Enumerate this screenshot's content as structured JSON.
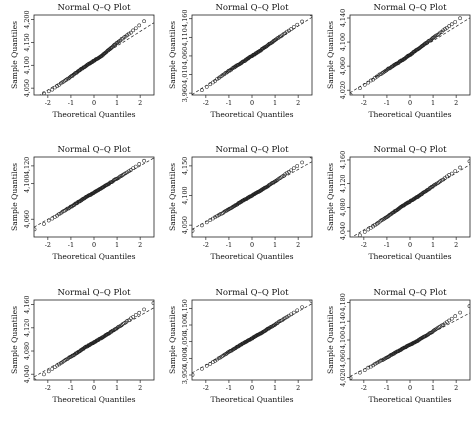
{
  "chart_data": [
    {
      "type": "scatter",
      "title": "Normal Q–Q Plot",
      "xlabel": "Theoretical Quantiles",
      "ylabel": "Sample Quantiles",
      "xlim": [
        -2.6,
        2.6
      ],
      "ylim": [
        4035,
        4210
      ],
      "x_ticks": [
        -2,
        -1,
        0,
        1,
        2
      ],
      "y_ticks": [
        4050,
        4100,
        4150,
        4200
      ],
      "y_tick_labels": [
        "4,050",
        "4,100",
        "4,150",
        "4,200"
      ],
      "line": {
        "intercept": 4110,
        "slope": 32
      },
      "shape": [
        0,
        -5,
        -3,
        0,
        0,
        8,
        12,
        20
      ]
    },
    {
      "type": "scatter",
      "title": "Normal Q–Q Plot",
      "xlabel": "Theoretical Quantiles",
      "ylabel": "Sample Quantiles",
      "xlim": [
        -2.6,
        2.6
      ],
      "ylim": [
        3955,
        4170
      ],
      "x_ticks": [
        -2,
        -1,
        0,
        1,
        2
      ],
      "y_ticks": [
        3960,
        4010,
        4060,
        4110,
        4160
      ],
      "y_tick_labels": [
        "3,960",
        "4,010",
        "4,060",
        "4,110",
        "4,160"
      ],
      "line": {
        "intercept": 4060,
        "slope": 40
      },
      "shape": [
        -6,
        -3,
        0,
        0,
        0,
        3,
        5,
        8
      ]
    },
    {
      "type": "scatter",
      "title": "Normal Q–Q Plot",
      "xlabel": "Theoretical Quantiles",
      "ylabel": "Sample Quantiles",
      "xlim": [
        -2.6,
        2.6
      ],
      "ylim": [
        4012,
        4145
      ],
      "x_ticks": [
        -2,
        -1,
        0,
        1,
        2
      ],
      "y_ticks": [
        4020,
        4060,
        4100,
        4140
      ],
      "y_tick_labels": [
        "4,020",
        "4,060",
        "4,100",
        "4,140"
      ],
      "line": {
        "intercept": 4078,
        "slope": 24
      },
      "shape": [
        -4,
        -2,
        0,
        0,
        2,
        5,
        8,
        10
      ]
    },
    {
      "type": "scatter",
      "title": "Normal Q–Q Plot",
      "xlabel": "Theoretical Quantiles",
      "ylabel": "Sample Quantiles",
      "xlim": [
        -2.6,
        2.6
      ],
      "ylim": [
        4040,
        4130
      ],
      "x_ticks": [
        -2,
        -1,
        0,
        1,
        2
      ],
      "y_ticks": [
        4060,
        4100,
        4120
      ],
      "y_tick_labels": [
        "4,060",
        "4,100",
        "4,120"
      ],
      "line": {
        "intercept": 4090,
        "slope": 15
      },
      "shape": [
        -3,
        -2,
        -1,
        0,
        0,
        1,
        2,
        4
      ]
    },
    {
      "type": "scatter",
      "title": "Normal Q–Q Plot",
      "xlabel": "Theoretical Quantiles",
      "ylabel": "Sample Quantiles",
      "xlim": [
        -2.6,
        2.6
      ],
      "ylim": [
        4030,
        4165
      ],
      "x_ticks": [
        -2,
        -1,
        0,
        1,
        2
      ],
      "y_ticks": [
        4050,
        4100,
        4150
      ],
      "y_tick_labels": [
        "4,050",
        "4,100",
        "4,150"
      ],
      "line": {
        "intercept": 4100,
        "slope": 22
      },
      "shape": [
        -3,
        -2,
        -1,
        0,
        0,
        2,
        6,
        9
      ]
    },
    {
      "type": "scatter",
      "title": "Normal Q–Q Plot",
      "xlabel": "Theoretical Quantiles",
      "ylabel": "Sample Quantiles",
      "xlim": [
        -2.6,
        2.6
      ],
      "ylim": [
        4030,
        4165
      ],
      "x_ticks": [
        -2,
        -1,
        0,
        1,
        2
      ],
      "y_ticks": [
        4040,
        4080,
        4120,
        4160
      ],
      "y_tick_labels": [
        "4,040",
        "4,080",
        "4,120",
        "4,160"
      ],
      "line": {
        "intercept": 4090,
        "slope": 24
      },
      "shape": [
        -6,
        -4,
        -2,
        0,
        0,
        2,
        4,
        6
      ]
    },
    {
      "type": "scatter",
      "title": "Normal Q–Q Plot",
      "xlabel": "Theoretical Quantiles",
      "ylabel": "Sample Quantiles",
      "xlim": [
        -2.6,
        2.6
      ],
      "ylim": [
        4030,
        4168
      ],
      "x_ticks": [
        -2,
        -1,
        0,
        1,
        2
      ],
      "y_ticks": [
        4040,
        4080,
        4120,
        4160
      ],
      "y_tick_labels": [
        "4,040",
        "4,080",
        "4,120",
        "4,160"
      ],
      "line": {
        "intercept": 4095,
        "slope": 23
      },
      "shape": [
        -6,
        -4,
        -2,
        0,
        0,
        2,
        5,
        8
      ]
    },
    {
      "type": "scatter",
      "title": "Normal Q–Q Plot",
      "xlabel": "Theoretical Quantiles",
      "ylabel": "Sample Quantiles",
      "xlim": [
        -2.6,
        2.6
      ],
      "ylim": [
        3935,
        4175
      ],
      "x_ticks": [
        -2,
        -1,
        0,
        1,
        2
      ],
      "y_ticks": [
        3950,
        4000,
        4050,
        4100,
        4150
      ],
      "y_tick_labels": [
        "3,950",
        "4,000",
        "4,050",
        "4,100",
        "4,150"
      ],
      "line": {
        "intercept": 4060,
        "slope": 40
      },
      "shape": [
        -6,
        -3,
        -1,
        0,
        0,
        2,
        5,
        10
      ]
    },
    {
      "type": "scatter",
      "title": "Normal Q–Q Plot",
      "xlabel": "Theoretical Quantiles",
      "ylabel": "Sample Quantiles",
      "xlim": [
        -2.6,
        2.6
      ],
      "ylim": [
        4015,
        4185
      ],
      "x_ticks": [
        -2,
        -1,
        0,
        1,
        2
      ],
      "y_ticks": [
        4020,
        4060,
        4100,
        4140,
        4180
      ],
      "y_tick_labels": [
        "4,020",
        "4,060",
        "4,100",
        "4,140",
        "4,180"
      ],
      "line": {
        "intercept": 4090,
        "slope": 26
      },
      "shape": [
        -4,
        -2,
        -1,
        0,
        0,
        3,
        8,
        15
      ]
    }
  ]
}
